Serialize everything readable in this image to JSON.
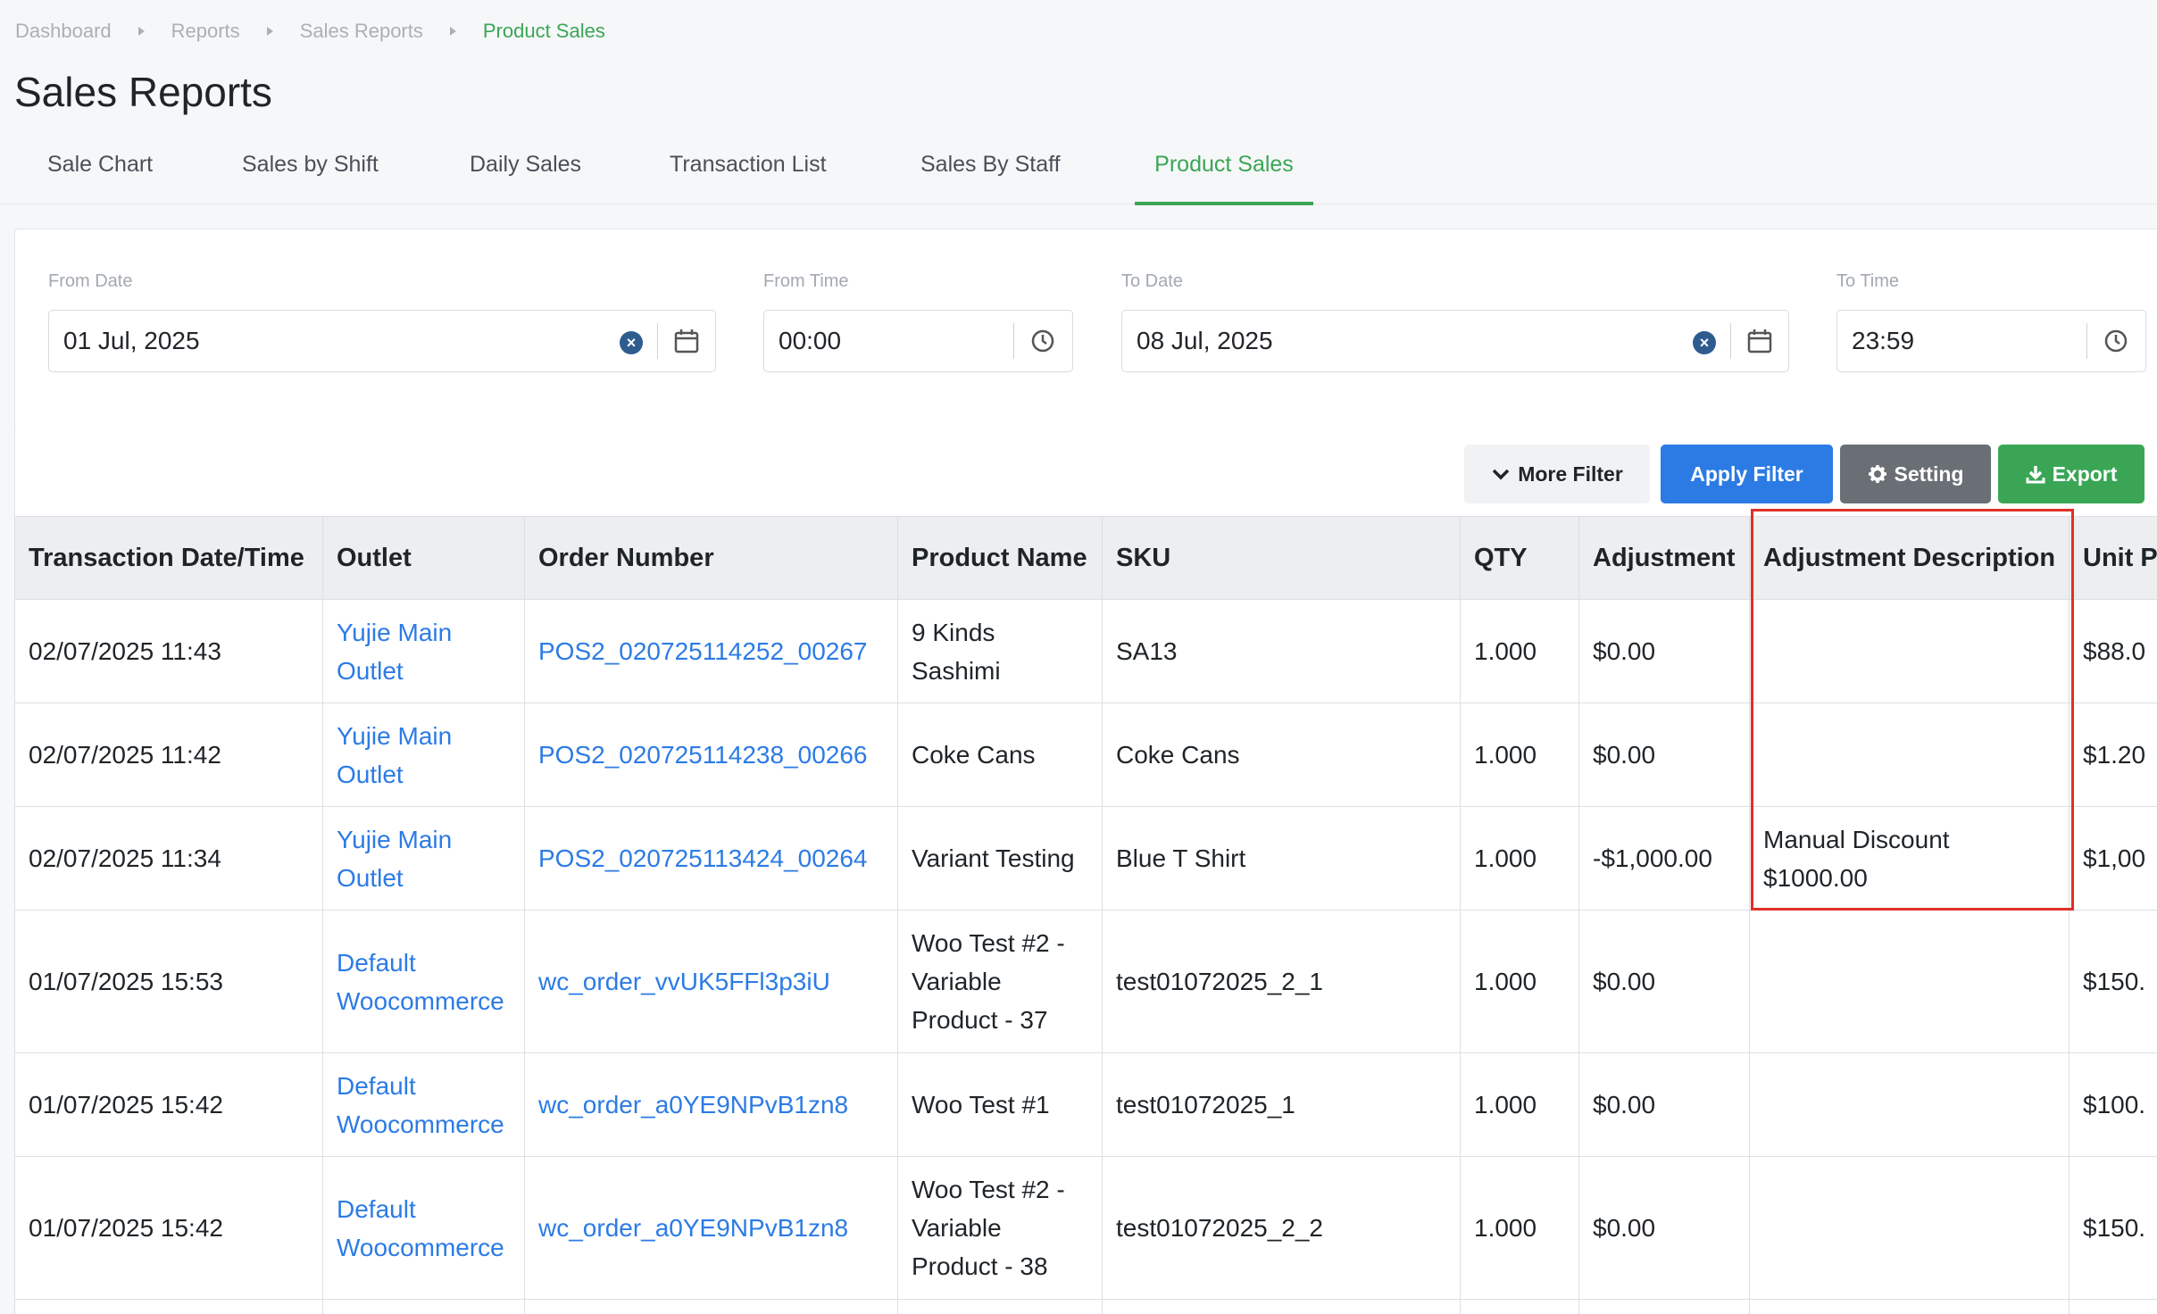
{
  "breadcrumb": [
    "Dashboard",
    "Reports",
    "Sales Reports",
    "Product Sales"
  ],
  "page_title": "Sales Reports",
  "tabs": [
    "Sale Chart",
    "Sales by Shift",
    "Daily Sales",
    "Transaction List",
    "Sales By Staff",
    "Product Sales"
  ],
  "active_tab": "Product Sales",
  "filters": {
    "from_date": {
      "label": "From Date",
      "value": "01 Jul, 2025"
    },
    "from_time": {
      "label": "From Time",
      "value": "00:00"
    },
    "to_date": {
      "label": "To Date",
      "value": "08 Jul, 2025"
    },
    "to_time": {
      "label": "To Time",
      "value": "23:59"
    }
  },
  "actions": {
    "more_filter": "More Filter",
    "apply_filter": "Apply Filter",
    "setting": "Setting",
    "export": "Export"
  },
  "table": {
    "headers": [
      "Transaction Date/Time",
      "Outlet",
      "Order Number",
      "Product Name",
      "SKU",
      "QTY",
      "Adjustment",
      "Adjustment Description",
      "Unit P"
    ],
    "rows": [
      {
        "datetime": "02/07/2025 11:43",
        "outlet": [
          "Yujie Main",
          "Outlet"
        ],
        "order": "POS2_020725114252_00267",
        "product": [
          "9 Kinds",
          "Sashimi"
        ],
        "sku": "SA13",
        "qty": "1.000",
        "adjustment": "$0.00",
        "adj_desc": [],
        "unit_price": "$88.0"
      },
      {
        "datetime": "02/07/2025 11:42",
        "outlet": [
          "Yujie Main",
          "Outlet"
        ],
        "order": "POS2_020725114238_00266",
        "product": [
          "Coke Cans"
        ],
        "sku": "Coke Cans",
        "qty": "1.000",
        "adjustment": "$0.00",
        "adj_desc": [],
        "unit_price": "$1.20"
      },
      {
        "datetime": "02/07/2025 11:34",
        "outlet": [
          "Yujie Main",
          "Outlet"
        ],
        "order": "POS2_020725113424_00264",
        "product": [
          "Variant Testing"
        ],
        "sku": "Blue T Shirt",
        "qty": "1.000",
        "adjustment": "-$1,000.00",
        "adj_desc": [
          "Manual Discount",
          "$1000.00"
        ],
        "unit_price": "$1,00"
      },
      {
        "datetime": "01/07/2025 15:53",
        "outlet": [
          "Default",
          "Woocommerce"
        ],
        "order": "wc_order_vvUK5FFl3p3iU",
        "product": [
          "Woo Test #2 -",
          "Variable",
          "Product - 37"
        ],
        "sku": "test01072025_2_1",
        "qty": "1.000",
        "adjustment": "$0.00",
        "adj_desc": [],
        "unit_price": "$150."
      },
      {
        "datetime": "01/07/2025 15:42",
        "outlet": [
          "Default",
          "Woocommerce"
        ],
        "order": "wc_order_a0YE9NPvB1zn8",
        "product": [
          "Woo Test #1"
        ],
        "sku": "test01072025_1",
        "qty": "1.000",
        "adjustment": "$0.00",
        "adj_desc": [],
        "unit_price": "$100."
      },
      {
        "datetime": "01/07/2025 15:42",
        "outlet": [
          "Default",
          "Woocommerce"
        ],
        "order": "wc_order_a0YE9NPvB1zn8",
        "product": [
          "Woo Test #2 -",
          "Variable",
          "Product - 38"
        ],
        "sku": "test01072025_2_2",
        "qty": "1.000",
        "adjustment": "$0.00",
        "adj_desc": [],
        "unit_price": "$150."
      }
    ]
  },
  "colors": {
    "accent_green": "#3aa655",
    "primary_blue": "#2c7be5",
    "highlight_red": "#e0302a"
  }
}
